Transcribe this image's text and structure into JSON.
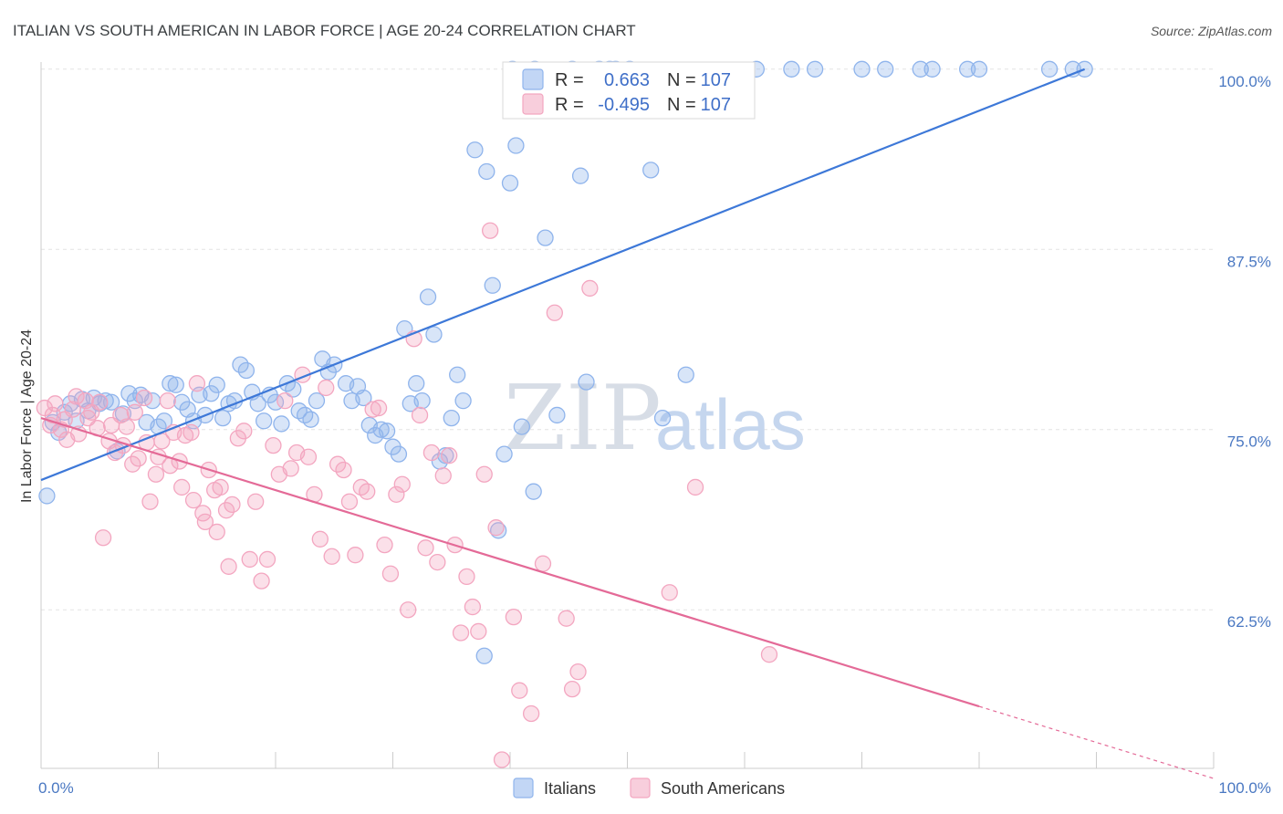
{
  "title": "ITALIAN VS SOUTH AMERICAN IN LABOR FORCE | AGE 20-24 CORRELATION CHART",
  "source": "Source: ZipAtlas.com",
  "watermark": {
    "zip": "ZIP",
    "atlas": "atlas"
  },
  "colors": {
    "italians": "#8fb4ec",
    "italians_line": "#3d78d8",
    "south_americans": "#f3a6c0",
    "south_americans_line": "#e46a97"
  },
  "legend": {
    "r_label": "R =",
    "n_label": "N =",
    "rows": [
      {
        "r": "0.663",
        "n": "107"
      },
      {
        "r": "-0.495",
        "n": "107"
      }
    ]
  },
  "chart_data": {
    "type": "scatter",
    "title": "ITALIAN VS SOUTH AMERICAN IN LABOR FORCE | AGE 20-24 CORRELATION CHART",
    "xlabel": "",
    "ylabel": "In Labor Force | Age 20-24",
    "xlim": [
      0,
      100
    ],
    "ylim": [
      51.5,
      101
    ],
    "x_tick_labels": [
      "0.0%",
      "100.0%"
    ],
    "y_ticks": [
      62.5,
      75.0,
      87.5,
      100.0
    ],
    "y_tick_labels": [
      "62.5%",
      "75.0%",
      "87.5%",
      "100.0%"
    ],
    "grid": true,
    "legend_position": "top-center",
    "series": [
      {
        "name": "Italians",
        "r": 0.663,
        "n": 107,
        "trend": {
          "x": [
            0,
            89
          ],
          "y": [
            71.5,
            100
          ]
        },
        "points": [
          [
            0.5,
            70.4
          ],
          [
            1,
            75.5
          ],
          [
            1.5,
            74.8
          ],
          [
            2,
            76.2
          ],
          [
            2.5,
            76.8
          ],
          [
            3,
            75.6
          ],
          [
            3.5,
            77.1
          ],
          [
            4,
            76.3
          ],
          [
            4.5,
            77.2
          ],
          [
            5,
            76.8
          ],
          [
            5.5,
            77.0
          ],
          [
            6,
            76.9
          ],
          [
            6.5,
            73.5
          ],
          [
            7,
            76.1
          ],
          [
            7.5,
            77.5
          ],
          [
            8,
            77.0
          ],
          [
            8.5,
            77.4
          ],
          [
            9,
            75.5
          ],
          [
            9.5,
            77.0
          ],
          [
            10,
            75.2
          ],
          [
            10.5,
            75.6
          ],
          [
            11,
            78.2
          ],
          [
            11.5,
            78.1
          ],
          [
            12,
            76.9
          ],
          [
            12.5,
            76.4
          ],
          [
            13,
            75.6
          ],
          [
            13.5,
            77.4
          ],
          [
            14,
            76.0
          ],
          [
            14.5,
            77.5
          ],
          [
            15,
            78.1
          ],
          [
            15.5,
            75.8
          ],
          [
            16,
            76.8
          ],
          [
            16.5,
            77.0
          ],
          [
            17,
            79.5
          ],
          [
            17.5,
            79.1
          ],
          [
            18,
            77.6
          ],
          [
            18.5,
            76.8
          ],
          [
            19,
            75.6
          ],
          [
            19.5,
            77.4
          ],
          [
            20,
            76.9
          ],
          [
            20.5,
            75.4
          ],
          [
            21,
            78.2
          ],
          [
            21.5,
            77.8
          ],
          [
            22,
            76.3
          ],
          [
            22.5,
            76.0
          ],
          [
            23,
            75.7
          ],
          [
            23.5,
            77.0
          ],
          [
            24,
            79.9
          ],
          [
            24.5,
            79.0
          ],
          [
            25,
            79.5
          ],
          [
            26,
            78.2
          ],
          [
            26.5,
            77.0
          ],
          [
            27,
            78.0
          ],
          [
            27.5,
            77.2
          ],
          [
            28,
            75.3
          ],
          [
            28.5,
            74.6
          ],
          [
            29,
            75.0
          ],
          [
            29.5,
            74.9
          ],
          [
            30,
            73.8
          ],
          [
            30.5,
            73.3
          ],
          [
            31,
            82.0
          ],
          [
            31.5,
            76.8
          ],
          [
            32,
            78.2
          ],
          [
            32.5,
            77.0
          ],
          [
            33,
            84.2
          ],
          [
            33.5,
            81.6
          ],
          [
            34,
            72.8
          ],
          [
            34.5,
            73.2
          ],
          [
            35,
            75.8
          ],
          [
            35.5,
            78.8
          ],
          [
            36,
            77.0
          ],
          [
            37,
            94.4
          ],
          [
            38,
            92.9
          ],
          [
            38.5,
            85.0
          ],
          [
            39,
            68.0
          ],
          [
            39.5,
            73.3
          ],
          [
            40,
            92.1
          ],
          [
            40.5,
            94.7
          ],
          [
            41,
            75.2
          ],
          [
            42,
            70.7
          ],
          [
            43,
            88.3
          ],
          [
            44,
            76.0
          ],
          [
            46,
            92.6
          ],
          [
            46.5,
            78.3
          ],
          [
            49,
            100
          ],
          [
            52,
            93.0
          ],
          [
            53,
            75.8
          ],
          [
            55,
            78.8
          ],
          [
            61,
            100
          ],
          [
            64,
            100
          ],
          [
            66,
            100
          ],
          [
            70,
            100
          ],
          [
            72,
            100
          ],
          [
            75,
            100
          ],
          [
            76,
            100
          ],
          [
            79,
            100
          ],
          [
            80,
            100
          ],
          [
            86,
            100
          ],
          [
            88,
            100
          ],
          [
            89,
            100
          ],
          [
            37.8,
            59.3
          ],
          [
            40.2,
            100
          ],
          [
            42.1,
            100
          ],
          [
            45.3,
            100
          ],
          [
            47.6,
            100
          ],
          [
            48.5,
            100
          ],
          [
            50.2,
            100
          ]
        ]
      },
      {
        "name": "South Americans",
        "r": -0.495,
        "n": 107,
        "trend": {
          "x": [
            0,
            80
          ],
          "y": [
            75.8,
            55.8
          ]
        },
        "trend_dashed": {
          "x": [
            80,
            100
          ],
          "y": [
            55.8,
            50.8
          ]
        },
        "points": [
          [
            0.3,
            76.5
          ],
          [
            0.8,
            75.3
          ],
          [
            1.2,
            76.8
          ],
          [
            1.7,
            75.0
          ],
          [
            2.2,
            74.3
          ],
          [
            2.7,
            76.4
          ],
          [
            3.2,
            74.7
          ],
          [
            3.8,
            77.0
          ],
          [
            4.3,
            76.2
          ],
          [
            4.8,
            75.1
          ],
          [
            5.3,
            67.5
          ],
          [
            5.8,
            74.2
          ],
          [
            6.3,
            73.4
          ],
          [
            6.8,
            76.0
          ],
          [
            7.3,
            75.2
          ],
          [
            7.8,
            72.6
          ],
          [
            8.3,
            73.0
          ],
          [
            8.8,
            77.2
          ],
          [
            9.3,
            70.0
          ],
          [
            9.8,
            71.9
          ],
          [
            10.3,
            74.2
          ],
          [
            10.8,
            77.0
          ],
          [
            11.3,
            74.8
          ],
          [
            11.8,
            72.8
          ],
          [
            12.3,
            74.6
          ],
          [
            12.8,
            74.8
          ],
          [
            13.3,
            78.2
          ],
          [
            13.8,
            69.2
          ],
          [
            14.3,
            72.2
          ],
          [
            14.8,
            70.8
          ],
          [
            15.3,
            71.0
          ],
          [
            15.8,
            69.4
          ],
          [
            16.3,
            69.8
          ],
          [
            16.8,
            74.4
          ],
          [
            17.3,
            74.9
          ],
          [
            17.8,
            66.0
          ],
          [
            18.3,
            70.0
          ],
          [
            18.8,
            64.5
          ],
          [
            19.3,
            66.0
          ],
          [
            19.8,
            73.9
          ],
          [
            20.3,
            71.9
          ],
          [
            20.8,
            77.0
          ],
          [
            21.3,
            72.3
          ],
          [
            21.8,
            73.4
          ],
          [
            22.3,
            78.8
          ],
          [
            22.8,
            73.1
          ],
          [
            23.3,
            70.5
          ],
          [
            23.8,
            67.4
          ],
          [
            24.3,
            77.9
          ],
          [
            24.8,
            66.2
          ],
          [
            25.3,
            72.6
          ],
          [
            25.8,
            72.2
          ],
          [
            26.3,
            70.0
          ],
          [
            26.8,
            66.3
          ],
          [
            27.3,
            71.0
          ],
          [
            27.8,
            70.7
          ],
          [
            28.3,
            76.4
          ],
          [
            28.8,
            76.5
          ],
          [
            29.3,
            67.0
          ],
          [
            29.8,
            65.0
          ],
          [
            30.3,
            70.5
          ],
          [
            30.8,
            71.2
          ],
          [
            31.3,
            62.5
          ],
          [
            31.8,
            81.3
          ],
          [
            32.3,
            76.0
          ],
          [
            32.8,
            66.8
          ],
          [
            33.3,
            73.4
          ],
          [
            33.8,
            65.8
          ],
          [
            34.3,
            71.8
          ],
          [
            34.8,
            73.2
          ],
          [
            35.3,
            67.0
          ],
          [
            35.8,
            60.9
          ],
          [
            36.3,
            64.8
          ],
          [
            36.8,
            62.7
          ],
          [
            37.3,
            61.0
          ],
          [
            37.8,
            71.9
          ],
          [
            38.3,
            88.8
          ],
          [
            38.8,
            68.2
          ],
          [
            39.3,
            52.1
          ],
          [
            40.3,
            62.0
          ],
          [
            40.8,
            56.9
          ],
          [
            41.8,
            55.3
          ],
          [
            42.8,
            65.7
          ],
          [
            43.8,
            83.1
          ],
          [
            44.8,
            61.9
          ],
          [
            45.3,
            57.0
          ],
          [
            45.8,
            58.2
          ],
          [
            46.8,
            84.8
          ],
          [
            53.6,
            63.7
          ],
          [
            55.8,
            71.0
          ],
          [
            62.1,
            59.4
          ],
          [
            1.0,
            76.0
          ],
          [
            2.0,
            75.7
          ],
          [
            3.0,
            77.3
          ],
          [
            4.0,
            75.8
          ],
          [
            5.0,
            76.9
          ],
          [
            6.0,
            75.3
          ],
          [
            7.0,
            73.9
          ],
          [
            8.0,
            76.2
          ],
          [
            9.0,
            74.1
          ],
          [
            10.0,
            73.1
          ],
          [
            11.0,
            72.5
          ],
          [
            12.0,
            71.0
          ],
          [
            13.0,
            70.1
          ],
          [
            14.0,
            68.6
          ],
          [
            15.0,
            67.9
          ],
          [
            16.0,
            65.5
          ]
        ]
      }
    ]
  }
}
